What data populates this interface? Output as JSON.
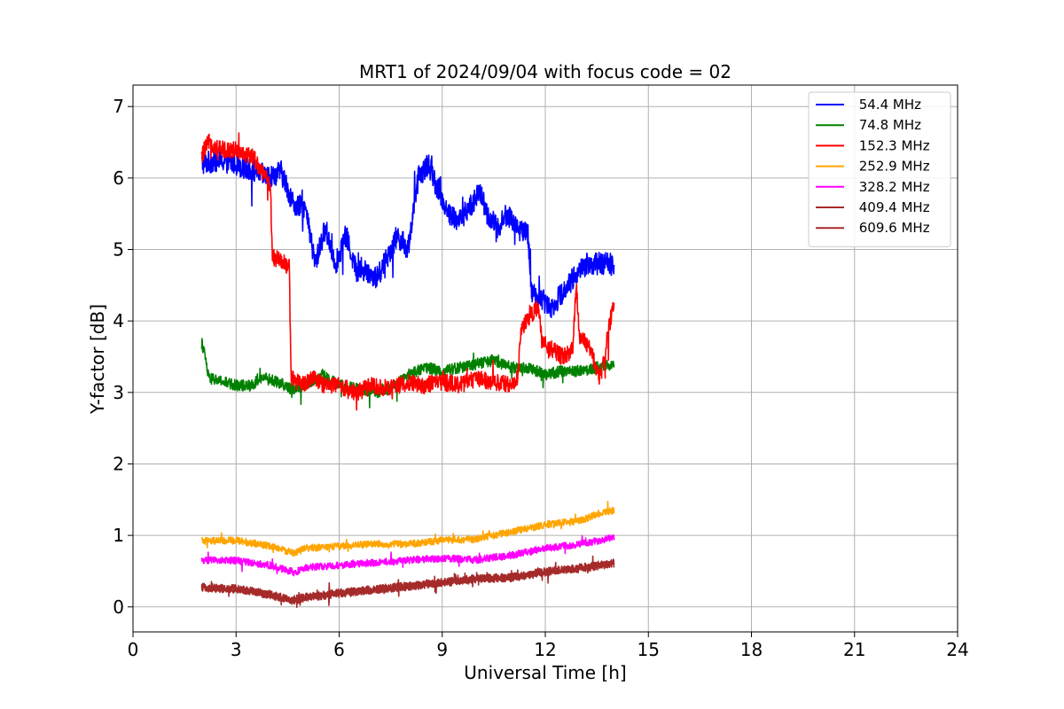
{
  "chart_data": {
    "type": "line",
    "title": "MRT1 of 2024/09/04 with focus code = 02",
    "xlabel": "Universal Time [h]",
    "ylabel": "Y-factor [dB]",
    "xlim": [
      0,
      24
    ],
    "ylim": [
      -0.35,
      7.3
    ],
    "xticks": [
      0,
      3,
      6,
      9,
      12,
      15,
      18,
      21,
      24
    ],
    "xtick_labels": [
      "0",
      "3",
      "6",
      "9",
      "12",
      "15",
      "18",
      "21",
      "24"
    ],
    "yticks": [
      0,
      1,
      2,
      3,
      4,
      5,
      6,
      7
    ],
    "ytick_labels": [
      "0",
      "1",
      "2",
      "3",
      "4",
      "5",
      "6",
      "7"
    ],
    "grid": true,
    "legend_position": "top-right",
    "series": [
      {
        "name": " 54.4 MHz",
        "color": "#0000ff",
        "noise": 0.16,
        "points": [
          [
            2.0,
            6.2
          ],
          [
            2.5,
            6.25
          ],
          [
            3.0,
            6.2
          ],
          [
            3.5,
            6.1
          ],
          [
            4.0,
            6.0
          ],
          [
            4.3,
            6.1
          ],
          [
            4.7,
            5.6
          ],
          [
            5.0,
            5.6
          ],
          [
            5.3,
            4.8
          ],
          [
            5.6,
            5.3
          ],
          [
            5.9,
            4.8
          ],
          [
            6.2,
            5.2
          ],
          [
            6.5,
            4.7
          ],
          [
            6.8,
            4.7
          ],
          [
            7.1,
            4.6
          ],
          [
            7.4,
            4.9
          ],
          [
            7.7,
            5.2
          ],
          [
            8.0,
            5.0
          ],
          [
            8.3,
            6.0
          ],
          [
            8.6,
            6.2
          ],
          [
            8.9,
            5.8
          ],
          [
            9.2,
            5.5
          ],
          [
            9.5,
            5.4
          ],
          [
            9.8,
            5.6
          ],
          [
            10.1,
            5.8
          ],
          [
            10.3,
            5.5
          ],
          [
            10.6,
            5.3
          ],
          [
            10.9,
            5.5
          ],
          [
            11.2,
            5.3
          ],
          [
            11.5,
            5.2
          ],
          [
            11.6,
            4.4
          ],
          [
            11.9,
            4.3
          ],
          [
            12.2,
            4.2
          ],
          [
            12.5,
            4.4
          ],
          [
            12.8,
            4.6
          ],
          [
            13.2,
            4.8
          ],
          [
            13.6,
            4.8
          ],
          [
            14.0,
            4.8
          ]
        ]
      },
      {
        "name": " 74.8 MHz",
        "color": "#008000",
        "noise": 0.08,
        "points": [
          [
            2.0,
            3.7
          ],
          [
            2.1,
            3.5
          ],
          [
            2.2,
            3.2
          ],
          [
            2.6,
            3.15
          ],
          [
            3.0,
            3.1
          ],
          [
            3.4,
            3.1
          ],
          [
            3.8,
            3.2
          ],
          [
            4.2,
            3.15
          ],
          [
            4.6,
            3.05
          ],
          [
            5.0,
            3.1
          ],
          [
            5.5,
            3.25
          ],
          [
            6.0,
            3.1
          ],
          [
            6.5,
            3.05
          ],
          [
            7.0,
            3.0
          ],
          [
            7.5,
            3.05
          ],
          [
            8.0,
            3.25
          ],
          [
            8.5,
            3.35
          ],
          [
            9.0,
            3.3
          ],
          [
            9.5,
            3.35
          ],
          [
            10.0,
            3.4
          ],
          [
            10.5,
            3.45
          ],
          [
            11.0,
            3.35
          ],
          [
            11.5,
            3.35
          ],
          [
            12.0,
            3.25
          ],
          [
            12.5,
            3.3
          ],
          [
            13.0,
            3.3
          ],
          [
            13.5,
            3.35
          ],
          [
            14.0,
            3.4
          ]
        ]
      },
      {
        "name": " 152.3 MHz",
        "color": "#ff0000",
        "noise": 0.12,
        "points": [
          [
            2.0,
            6.3
          ],
          [
            2.2,
            6.5
          ],
          [
            2.5,
            6.4
          ],
          [
            3.0,
            6.4
          ],
          [
            3.5,
            6.3
          ],
          [
            3.8,
            6.05
          ],
          [
            4.0,
            5.9
          ],
          [
            4.05,
            4.9
          ],
          [
            4.3,
            4.85
          ],
          [
            4.55,
            4.75
          ],
          [
            4.6,
            3.2
          ],
          [
            4.9,
            3.1
          ],
          [
            5.2,
            3.2
          ],
          [
            5.6,
            3.1
          ],
          [
            6.0,
            3.1
          ],
          [
            6.5,
            3.0
          ],
          [
            7.0,
            3.1
          ],
          [
            7.5,
            3.05
          ],
          [
            8.0,
            3.15
          ],
          [
            8.5,
            3.1
          ],
          [
            9.0,
            3.15
          ],
          [
            9.5,
            3.1
          ],
          [
            10.0,
            3.2
          ],
          [
            10.5,
            3.15
          ],
          [
            11.0,
            3.1
          ],
          [
            11.2,
            3.2
          ],
          [
            11.3,
            3.9
          ],
          [
            11.6,
            4.1
          ],
          [
            11.8,
            4.2
          ],
          [
            11.9,
            3.7
          ],
          [
            12.2,
            3.6
          ],
          [
            12.5,
            3.5
          ],
          [
            12.8,
            3.6
          ],
          [
            12.9,
            4.5
          ],
          [
            13.0,
            3.8
          ],
          [
            13.3,
            3.6
          ],
          [
            13.6,
            3.2
          ],
          [
            14.0,
            4.3
          ]
        ]
      },
      {
        "name": " 252.9 MHz",
        "color": "#ffa500",
        "noise": 0.05,
        "points": [
          [
            2.0,
            0.92
          ],
          [
            3.0,
            0.93
          ],
          [
            4.0,
            0.85
          ],
          [
            4.7,
            0.75
          ],
          [
            5.0,
            0.82
          ],
          [
            6.0,
            0.85
          ],
          [
            7.0,
            0.88
          ],
          [
            8.0,
            0.88
          ],
          [
            9.0,
            0.93
          ],
          [
            10.0,
            0.95
          ],
          [
            11.0,
            1.05
          ],
          [
            12.0,
            1.15
          ],
          [
            13.0,
            1.2
          ],
          [
            13.5,
            1.3
          ],
          [
            14.0,
            1.35
          ]
        ]
      },
      {
        "name": " 328.2 MHz",
        "color": "#ff00ff",
        "noise": 0.05,
        "points": [
          [
            2.0,
            0.65
          ],
          [
            3.0,
            0.65
          ],
          [
            4.0,
            0.58
          ],
          [
            4.7,
            0.48
          ],
          [
            5.0,
            0.55
          ],
          [
            6.0,
            0.58
          ],
          [
            7.0,
            0.62
          ],
          [
            8.0,
            0.65
          ],
          [
            9.0,
            0.68
          ],
          [
            10.0,
            0.66
          ],
          [
            11.0,
            0.72
          ],
          [
            12.0,
            0.82
          ],
          [
            13.0,
            0.88
          ],
          [
            13.5,
            0.92
          ],
          [
            14.0,
            0.98
          ]
        ]
      },
      {
        "name": " 409.4 MHz",
        "color": "#a52a2a",
        "noise": 0.05,
        "points": [
          [
            2.0,
            0.28
          ],
          [
            3.0,
            0.26
          ],
          [
            4.0,
            0.18
          ],
          [
            4.6,
            0.1
          ],
          [
            5.0,
            0.14
          ],
          [
            6.0,
            0.2
          ],
          [
            7.0,
            0.25
          ],
          [
            8.0,
            0.3
          ],
          [
            9.0,
            0.35
          ],
          [
            10.0,
            0.4
          ],
          [
            11.0,
            0.42
          ],
          [
            12.0,
            0.5
          ],
          [
            13.0,
            0.55
          ],
          [
            14.0,
            0.62
          ]
        ]
      },
      {
        "name": " 609.6 MHz",
        "color": "#a52a2a",
        "noise": 0.05,
        "points": [
          [
            2.0,
            0.26
          ],
          [
            3.0,
            0.24
          ],
          [
            4.0,
            0.16
          ],
          [
            4.6,
            0.08
          ],
          [
            5.0,
            0.12
          ],
          [
            6.0,
            0.18
          ],
          [
            7.0,
            0.23
          ],
          [
            8.0,
            0.28
          ],
          [
            9.0,
            0.33
          ],
          [
            10.0,
            0.38
          ],
          [
            11.0,
            0.4
          ],
          [
            12.0,
            0.48
          ],
          [
            13.0,
            0.53
          ],
          [
            14.0,
            0.6
          ]
        ]
      }
    ]
  }
}
